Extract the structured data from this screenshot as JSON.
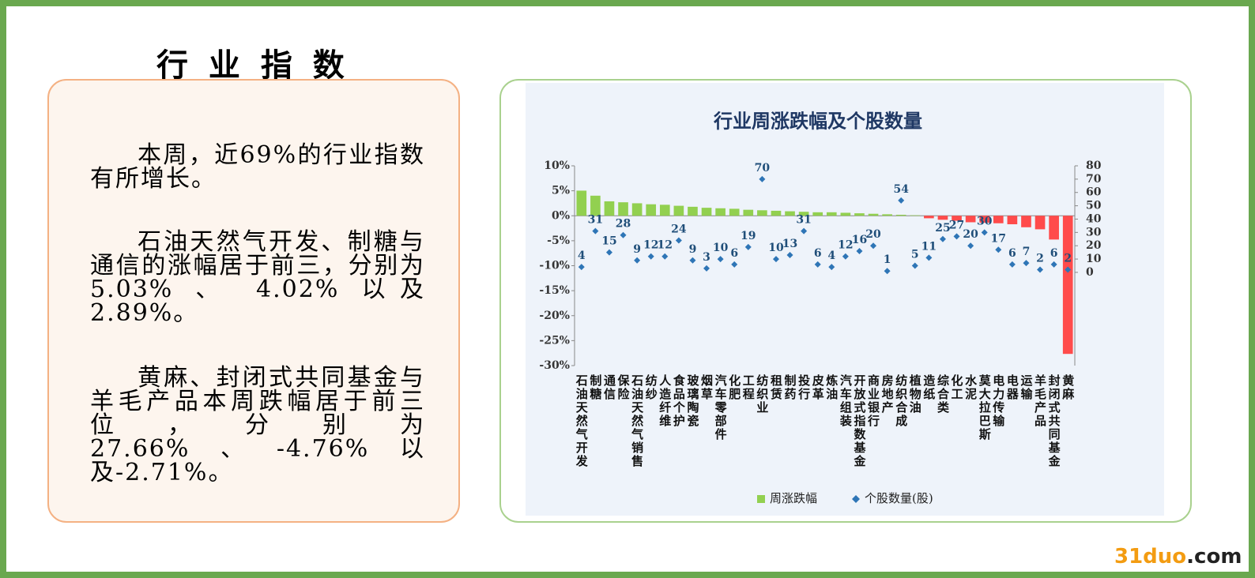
{
  "slide_title": "行 业 指 数",
  "paragraphs": [
    "本周，近69%的行业指数有所增长。",
    "石油天然气开发、制糖与通信的涨幅居于前三，分别为 5.03% 、 4.02% 以及2.89%。",
    "黄麻、封闭式共同基金与羊毛产品本周跌幅居于前三位，分别为27.66%、-4.76%以及-2.71%。"
  ],
  "watermark": [
    "31duo",
    ".com"
  ],
  "chart_data": {
    "type": "bar",
    "title": "行业周涨跌幅及个股数量",
    "categories": [
      "石油天然气开发",
      "制糖",
      "通信",
      "保险",
      "石油天然气销售",
      "纺纱",
      "人造纤维",
      "食品个护",
      "玻璃陶瓷",
      "烟草",
      "汽车零部件",
      "化肥",
      "工程",
      "纺织业",
      "租赁",
      "制药",
      "投行",
      "皮革",
      "炼油",
      "汽车组装",
      "开放式指数基金",
      "商业银行",
      "房地产",
      "纺织合成",
      "植物油",
      "造纸",
      "综合类",
      "化工",
      "水泥",
      "莫大拉巴斯",
      "电力传输",
      "电器",
      "运输",
      "羊毛产品",
      "封闭式共同基金",
      "黄麻"
    ],
    "series": [
      {
        "name": "周涨跌幅",
        "color": "#92d050",
        "negative_color": "#ff4b4b",
        "values": [
          5.03,
          4.02,
          2.89,
          2.7,
          2.5,
          2.3,
          2.2,
          2.0,
          1.8,
          1.6,
          1.5,
          1.4,
          1.2,
          1.1,
          1.0,
          0.9,
          0.8,
          0.7,
          0.7,
          0.6,
          0.5,
          0.4,
          0.3,
          0.2,
          0.1,
          -0.5,
          -0.8,
          -1.0,
          -1.3,
          -1.4,
          -1.5,
          -1.7,
          -2.3,
          -2.71,
          -4.76,
          -27.66
        ]
      },
      {
        "name": "个股数量(股)",
        "color": "#2e75b6",
        "axis": "y2",
        "marker": "diamond",
        "values": [
          4,
          31,
          15,
          28,
          9,
          12,
          12,
          24,
          9,
          3,
          10,
          6,
          19,
          70,
          10,
          13,
          31,
          6,
          4,
          12,
          16,
          20,
          1,
          54,
          5,
          11,
          25,
          27,
          20,
          30,
          17,
          6,
          7,
          2,
          6,
          2
        ]
      }
    ],
    "ylim": [
      -30,
      10
    ],
    "yticks": [
      {
        "value": 10,
        "label": "10%"
      },
      {
        "value": 5,
        "label": "5%"
      },
      {
        "value": 0,
        "label": "0%"
      },
      {
        "value": -5,
        "label": "-5%"
      },
      {
        "value": -10,
        "label": "-10%"
      },
      {
        "value": -15,
        "label": "-15%"
      },
      {
        "value": -20,
        "label": "-20%"
      },
      {
        "value": -25,
        "label": "-25%"
      },
      {
        "value": -30,
        "label": "-30%"
      }
    ],
    "y2lim": [
      -70,
      80
    ],
    "y2ticks": [
      0,
      10,
      20,
      30,
      40,
      50,
      60,
      70,
      80
    ],
    "legend": "bottom",
    "grid": false
  }
}
